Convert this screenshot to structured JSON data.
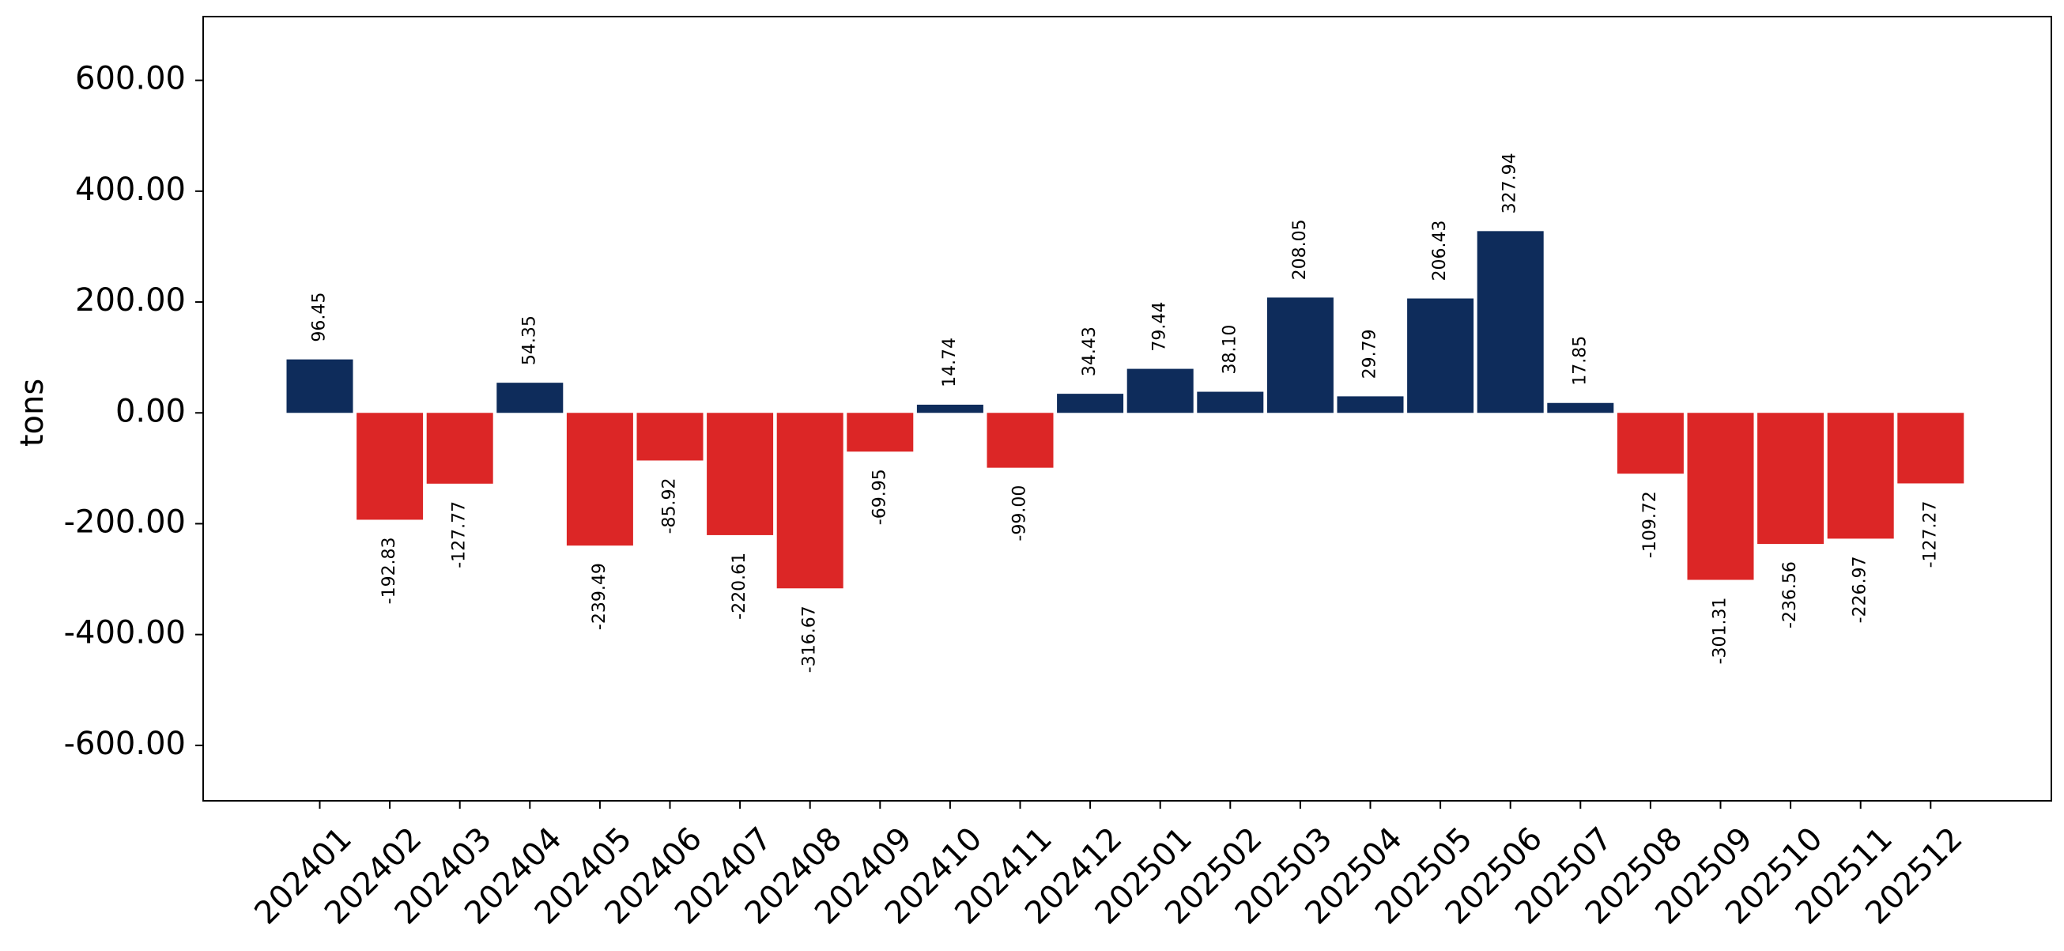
{
  "chart_data": {
    "type": "bar",
    "title": "",
    "xlabel": "",
    "ylabel": "tons",
    "ylim": [
      -700,
      715
    ],
    "yticks": [
      600,
      400,
      200,
      0,
      -200,
      -400,
      -600
    ],
    "ytick_labels": [
      "600.00",
      "400.00",
      "200.00",
      "0.00",
      "-200.00",
      "-400.00",
      "-600.00"
    ],
    "categories": [
      "202401",
      "202402",
      "202403",
      "202404",
      "202405",
      "202406",
      "202407",
      "202408",
      "202409",
      "202410",
      "202411",
      "202412",
      "202501",
      "202502",
      "202503",
      "202504",
      "202505",
      "202506",
      "202507",
      "202508",
      "202509",
      "202510",
      "202511",
      "202512"
    ],
    "values": [
      96.45,
      -192.83,
      -127.77,
      54.35,
      -239.49,
      -85.92,
      -220.61,
      -316.67,
      -69.95,
      14.74,
      -99.0,
      34.43,
      79.44,
      38.1,
      208.05,
      29.79,
      206.43,
      327.94,
      17.85,
      -109.72,
      -301.31,
      -236.56,
      -226.97,
      -127.27
    ],
    "value_labels": [
      "96.45",
      "-192.83",
      "-127.77",
      "54.35",
      "-239.49",
      "-85.92",
      "-220.61",
      "-316.67",
      "-69.95",
      "14.74",
      "-99.00",
      "34.43",
      "79.44",
      "38.10",
      "208.05",
      "29.79",
      "206.43",
      "327.94",
      "17.85",
      "-109.72",
      "-301.31",
      "-236.56",
      "-226.97",
      "-127.27"
    ],
    "colors": {
      "positive": "#0e2c5b",
      "negative": "#dc2626"
    },
    "grid": false,
    "legend": "none"
  }
}
